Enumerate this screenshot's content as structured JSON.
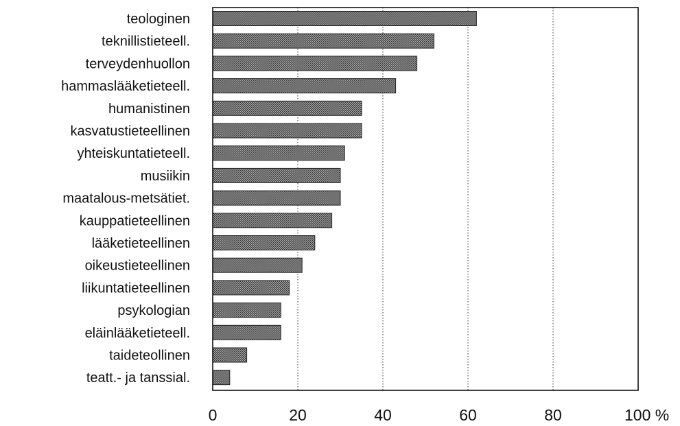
{
  "chart_data": {
    "type": "bar",
    "orientation": "horizontal",
    "categories": [
      "teologinen",
      "teknillistieteell.",
      "terveydenhuollon",
      "hammaslääketieteell.",
      "humanistinen",
      "kasvatustieteellinen",
      "yhteiskuntatieteell.",
      "musiikin",
      "maatalous-metsätiet.",
      "kauppatieteellinen",
      "lääketieteellinen",
      "oikeustieteellinen",
      "liikuntatieteellinen",
      "psykologian",
      "eläinlääketieteell.",
      "taideteollinen",
      "teatt.- ja tanssial."
    ],
    "values": [
      62,
      52,
      48,
      43,
      35,
      35,
      31,
      30,
      30,
      28,
      24,
      21,
      18,
      16,
      16,
      8,
      4
    ],
    "xlim": [
      0,
      100
    ],
    "x_ticks": [
      "0",
      "20",
      "40",
      "60",
      "80",
      "100 %"
    ],
    "x_tick_values": [
      0,
      20,
      40,
      60,
      80,
      100
    ],
    "grid": "vertical dotted",
    "title": "",
    "xlabel": "",
    "ylabel": "",
    "colors": {
      "bar_fill": "#7a7a7a",
      "bar_pattern_dot": "#3a3a3a",
      "bar_pattern_light": "#a8a8a8",
      "frame": "#111111",
      "grid": "#333333",
      "text": "#111111"
    }
  }
}
